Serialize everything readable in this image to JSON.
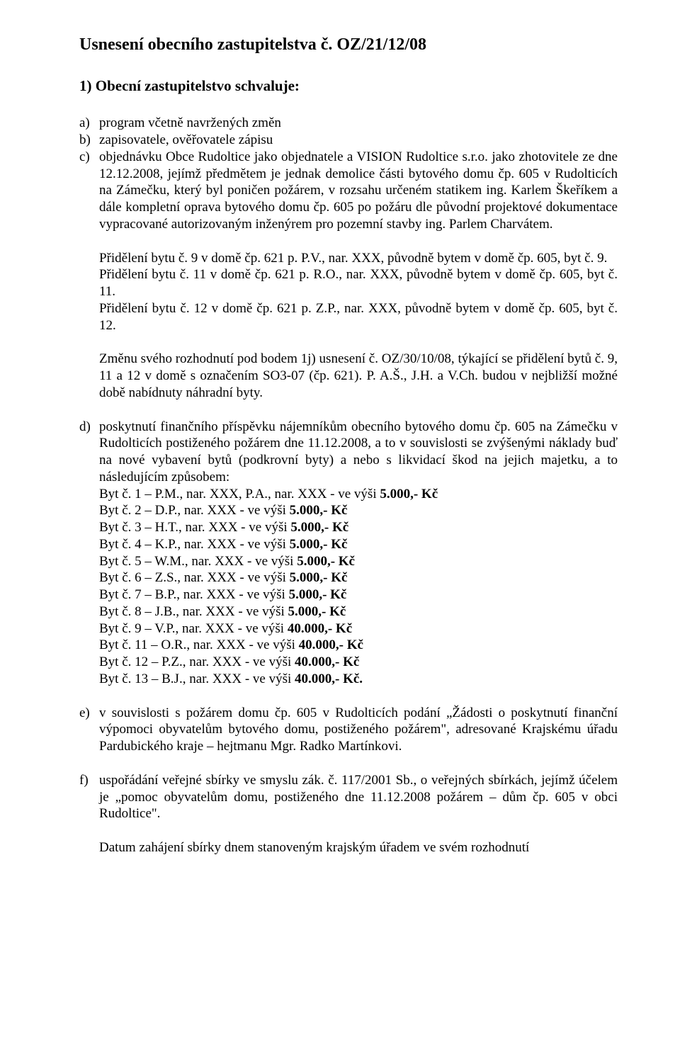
{
  "title": "Usnesení obecního zastupitelstva č. OZ/21/12/08",
  "section1": {
    "heading": "1) Obecní zastupitelstvo schvaluje:",
    "a": {
      "marker": "a)",
      "text": "program včetně navržených změn"
    },
    "b": {
      "marker": "b)",
      "text": "zapisovatele, ověřovatele zápisu"
    },
    "c": {
      "marker": "c)",
      "para1": "objednávku Obce Rudoltice jako objednatele a VISION Rudoltice s.r.o. jako zhotovitele ze dne 12.12.2008, jejímž předmětem je jednak demolice části bytového domu čp. 605 v Rudolticích na Zámečku, který byl poničen požárem, v rozsahu určeném statikem ing. Karlem Škeříkem a dále kompletní oprava bytového domu čp. 605 po požáru dle původní projektové dokumentace vypracované autorizovaným inženýrem pro pozemní stavby ing. Parlem Charvátem.",
      "para2": "Přidělení bytu č. 9 v domě čp. 621 p. P.V., nar. XXX, původně bytem v domě čp. 605, byt č. 9.",
      "para3": "Přidělení bytu č. 11 v domě čp. 621 p. R.O., nar. XXX, původně bytem v domě čp. 605, byt č. 11.",
      "para4": "Přidělení bytu č. 12 v domě čp. 621 p. Z.P., nar. XXX, původně bytem v domě čp. 605, byt č. 12.",
      "para5": "Změnu svého rozhodnutí pod bodem 1j) usnesení č. OZ/30/10/08, týkající se přidělení bytů č. 9, 11 a 12 v domě s označením SO3-07 (čp. 621). P. A.Š., J.H. a V.Ch. budou v nejbližší možné době nabídnuty náhradní byty."
    },
    "d": {
      "marker": "d)",
      "intro": "poskytnutí finančního příspěvku nájemníkům obecního bytového domu čp. 605 na Zámečku v Rudolticích postiženého požárem dne 11.12.2008, a to v souvislosti se zvýšenými náklady buď na nové vybavení bytů (podkrovní byty) a nebo s likvidací škod na jejich majetku, a to následujícím způsobem:",
      "lines": [
        "Byt č. 1 – P.M., nar. XXX, P.A., nar. XXX - ve výši 5.000,- Kč",
        "Byt č. 2 – D.P., nar. XXX - ve výši 5.000,- Kč",
        "Byt č. 3 – H.T., nar. XXX - ve výši 5.000,- Kč",
        "Byt č. 4 – K.P., nar. XXX - ve výši 5.000,- Kč",
        "Byt č. 5 – W.M., nar. XXX - ve výši 5.000,- Kč",
        "Byt č. 6 – Z.S., nar. XXX - ve výši 5.000,- Kč",
        "Byt č. 7 – B.P., nar. XXX - ve výši 5.000,- Kč",
        "Byt č. 8 – J.B., nar. XXX - ve výši 5.000,- Kč",
        "Byt č. 9 – V.P., nar. XXX - ve výši 40.000,- Kč",
        "Byt č. 11 – O.R., nar. XXX - ve výši 40.000,- Kč",
        "Byt č. 12 – P.Z., nar. XXX - ve výši 40.000,- Kč",
        "Byt č. 13 – B.J., nar. XXX - ve výši 40.000,- Kč."
      ]
    },
    "e": {
      "marker": "e)",
      "text": "v souvislosti s požárem domu čp. 605 v Rudolticích podání „Žádosti o poskytnutí finanční výpomoci obyvatelům bytového domu, postiženého požárem\", adresované Krajskému úřadu Pardubického kraje – hejtmanu Mgr. Radko Martínkovi."
    },
    "f": {
      "marker": "f)",
      "para1": "uspořádání veřejné sbírky ve smyslu zák. č. 117/2001 Sb., o veřejných sbírkách, jejímž účelem je „pomoc obyvatelům domu, postiženého dne 11.12.2008 požárem – dům čp. 605 v obci Rudoltice\".",
      "para2": "Datum zahájení sbírky dnem stanoveným krajským úřadem ve svém rozhodnutí"
    }
  },
  "bold_suffix": "5.000,- Kč",
  "bold_suffix_40": "40.000,- Kč",
  "bold_suffix_40_dot": "40.000,- Kč."
}
